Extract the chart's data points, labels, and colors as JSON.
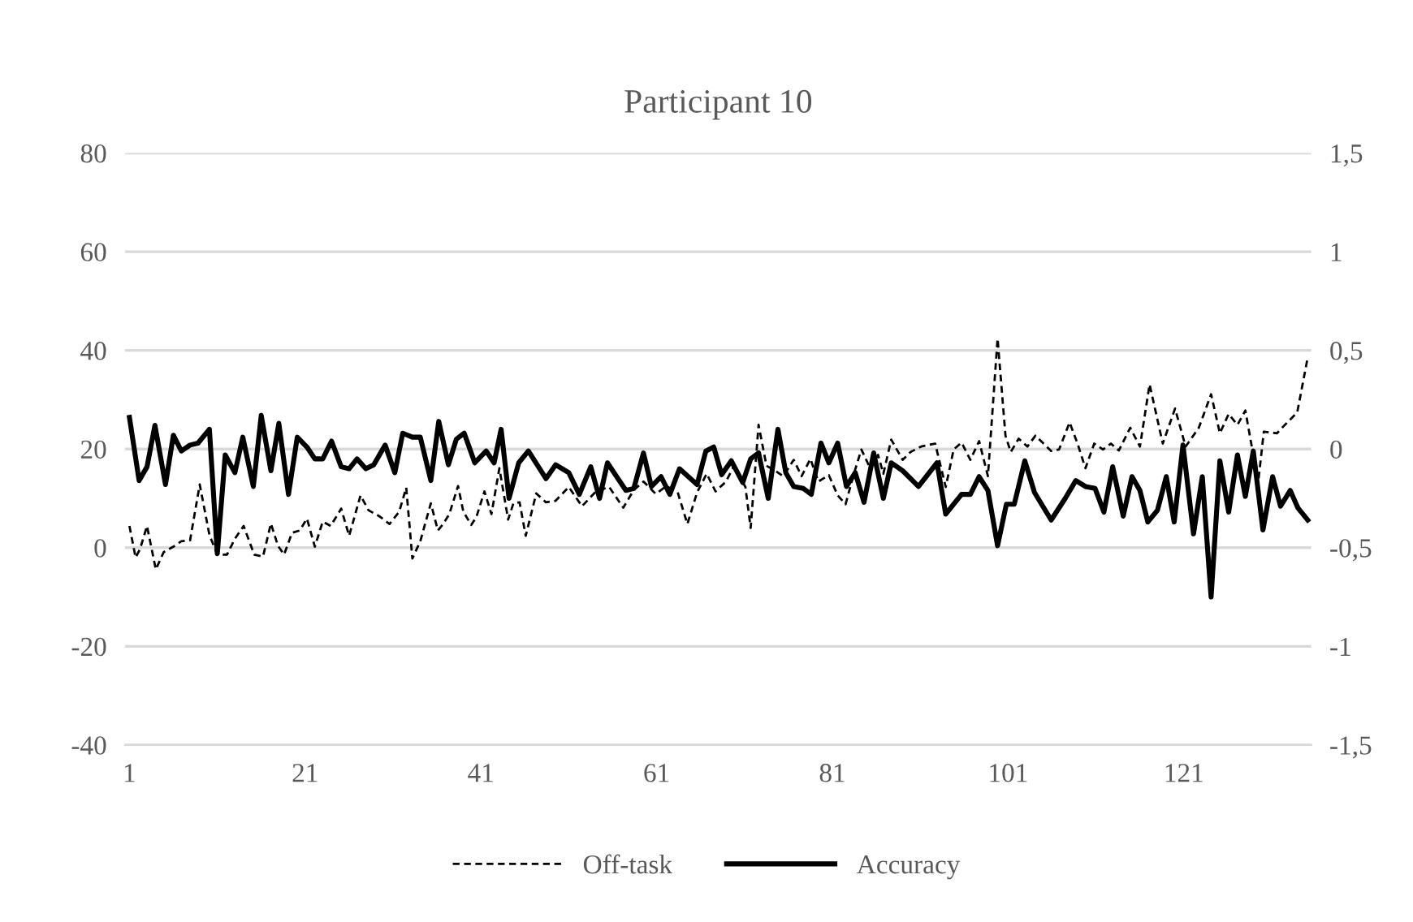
{
  "chart_data": {
    "type": "line",
    "title": "Participant 10",
    "xlim": [
      0.5,
      135.5
    ],
    "xticks": [
      1,
      21,
      41,
      61,
      81,
      101,
      121
    ],
    "ylim": [
      -40,
      80
    ],
    "yticks": [
      -40,
      -20,
      0,
      20,
      40,
      60,
      80
    ],
    "y2lim": [
      -1.5,
      1.5
    ],
    "y2ticks": [
      {
        "value": -1.5,
        "label": "-1,5"
      },
      -1,
      {
        "value": -0.5,
        "label": "-0,5"
      },
      0,
      {
        "value": 0.5,
        "label": "0,5"
      },
      1,
      {
        "value": 1.5,
        "label": "1,5"
      }
    ],
    "grid": "y",
    "legend": "bottom",
    "marker": "none",
    "series": [
      {
        "name": "Off-task",
        "color": "#000000",
        "line_style": "dashed",
        "axis": "y",
        "x": [
          1,
          1.7,
          2.2,
          3.0,
          4.0,
          4.9,
          6.0,
          6.9,
          7.9,
          9.0,
          10.1,
          11.0,
          12.1,
          13.0,
          14.0,
          15.2,
          16.2,
          17.1,
          17.9,
          18.6,
          19.5,
          20.4,
          21.2,
          22.1,
          23.0,
          23.9,
          25.1,
          26.0,
          27.3,
          28.2,
          29.5,
          30.6,
          31.7,
          32.5,
          33.2,
          34.1,
          35.3,
          36.1,
          36.7,
          37.4,
          38.4,
          39.0,
          39.9,
          40.5,
          41.4,
          42.2,
          43.1,
          44.1,
          44.7,
          45.4,
          46.1,
          47.3,
          48.4,
          49.5,
          51.0,
          52.5,
          54.1,
          55.6,
          57.2,
          58.4,
          59.5,
          60.9,
          62.1,
          63.4,
          64.5,
          65.6,
          66.7,
          67.7,
          68.9,
          69.8,
          71.1,
          71.7,
          72.6,
          73.5,
          74.5,
          75.4,
          76.6,
          77.5,
          78.5,
          79.4,
          80.6,
          81.6,
          82.5,
          83.4,
          84.3,
          85.3,
          86.2,
          86.8,
          87.7,
          89.0,
          89.9,
          91.1,
          92.7,
          93.9,
          94.8,
          95.7,
          96.7,
          97.7,
          98.7,
          99.8,
          100.7,
          101.3,
          102.2,
          103.2,
          104.1,
          105.9,
          106.8,
          108.0,
          108.9,
          109.8,
          110.8,
          111.8,
          112.7,
          113.6,
          114.9,
          116.0,
          117.1,
          118.6,
          120.0,
          121.2,
          122.7,
          124.1,
          125.1,
          126.1,
          127.1,
          128.0,
          128.9,
          129.4,
          130.1,
          131.6,
          132.5,
          133.9,
          135.1
        ],
        "values": [
          4.4,
          -2.0,
          -0.3,
          4.4,
          -4.4,
          -0.9,
          0.2,
          1.3,
          1.5,
          12.8,
          2.6,
          -1.4,
          -1.4,
          1.8,
          4.4,
          -1.4,
          -1.8,
          4.9,
          0.4,
          -1.4,
          3.0,
          3.5,
          5.9,
          0.2,
          5.3,
          4.4,
          7.9,
          2.4,
          10.6,
          7.6,
          6.3,
          4.8,
          7.3,
          12.2,
          -2.2,
          1.3,
          9.0,
          3.5,
          4.8,
          6.8,
          12.5,
          7.3,
          4.6,
          6.3,
          11.4,
          6.8,
          16.1,
          5.7,
          9.0,
          9.2,
          2.4,
          11.0,
          9.2,
          9.5,
          12.3,
          8.4,
          11.4,
          12.3,
          8.1,
          11.7,
          13.4,
          10.9,
          12.5,
          11.2,
          4.8,
          11.2,
          15.0,
          11.4,
          13.4,
          16.6,
          12.3,
          4.0,
          24.9,
          16.6,
          15.6,
          14.5,
          17.8,
          14.5,
          18.0,
          13.4,
          14.7,
          10.6,
          8.8,
          14.7,
          19.9,
          16.1,
          18.8,
          15.0,
          21.9,
          17.8,
          19.4,
          20.5,
          21.1,
          12.3,
          19.9,
          21.3,
          17.8,
          21.6,
          14.5,
          42.4,
          22.7,
          19.4,
          22.1,
          20.5,
          22.7,
          19.6,
          19.9,
          25.4,
          21.1,
          16.1,
          21.1,
          19.9,
          21.1,
          19.7,
          24.3,
          20.5,
          33.1,
          21.1,
          28.2,
          20.5,
          24.3,
          31.1,
          23.2,
          27.1,
          24.9,
          27.8,
          18.8,
          12.3,
          23.5,
          23.2,
          24.9,
          27.4,
          38.6
        ]
      },
      {
        "name": "Accuracy",
        "color": "#000000",
        "line_style": "solid",
        "axis": "y2",
        "x": [
          1,
          2.1,
          3.0,
          3.9,
          5.1,
          6.0,
          6.9,
          7.9,
          8.8,
          10.1,
          11.0,
          11.9,
          13.0,
          13.9,
          15.1,
          16.0,
          17.1,
          18.0,
          19.1,
          20.1,
          21.2,
          22.1,
          23.0,
          24.0,
          25.1,
          26.0,
          26.9,
          27.9,
          28.8,
          30.1,
          31.2,
          32.1,
          33.2,
          34.1,
          35.3,
          36.2,
          37.3,
          38.2,
          39.1,
          40.3,
          41.6,
          42.5,
          43.3,
          44.2,
          45.3,
          46.4,
          48.4,
          49.5,
          51.0,
          52.2,
          53.5,
          54.5,
          55.4,
          57.5,
          58.4,
          59.5,
          60.4,
          61.5,
          62.5,
          63.6,
          65.6,
          66.6,
          67.5,
          68.4,
          69.5,
          70.8,
          71.7,
          72.6,
          73.7,
          74.8,
          75.7,
          76.6,
          77.7,
          78.6,
          79.7,
          80.6,
          81.6,
          82.6,
          83.6,
          84.6,
          85.7,
          86.8,
          87.7,
          89.0,
          90.8,
          92.9,
          93.9,
          95.7,
          96.7,
          97.7,
          98.7,
          99.8,
          100.8,
          101.7,
          102.9,
          104.0,
          105.9,
          107.5,
          108.7,
          109.8,
          110.9,
          111.9,
          112.9,
          114.1,
          115.1,
          116.0,
          116.9,
          118.0,
          119.0,
          119.9,
          120.9,
          122.1,
          123.1,
          124.1,
          125.1,
          126.1,
          127.1,
          128.0,
          128.9,
          130.0,
          131.1,
          132.0,
          133.1,
          134.0,
          135.1
        ],
        "values": [
          0.16,
          -0.16,
          -0.09,
          0.12,
          -0.18,
          0.07,
          -0.01,
          0.02,
          0.03,
          0.1,
          -0.53,
          -0.03,
          -0.12,
          0.06,
          -0.19,
          0.17,
          -0.11,
          0.13,
          -0.23,
          0.06,
          0.01,
          -0.05,
          -0.05,
          0.04,
          -0.09,
          -0.1,
          -0.05,
          -0.1,
          -0.08,
          0.02,
          -0.12,
          0.08,
          0.06,
          0.06,
          -0.16,
          0.14,
          -0.08,
          0.05,
          0.08,
          -0.07,
          -0.01,
          -0.07,
          0.1,
          -0.25,
          -0.07,
          -0.01,
          -0.15,
          -0.08,
          -0.12,
          -0.23,
          -0.09,
          -0.25,
          -0.07,
          -0.21,
          -0.2,
          -0.02,
          -0.19,
          -0.14,
          -0.23,
          -0.1,
          -0.18,
          -0.01,
          0.01,
          -0.13,
          -0.06,
          -0.17,
          -0.05,
          -0.02,
          -0.25,
          0.1,
          -0.12,
          -0.19,
          -0.2,
          -0.23,
          0.03,
          -0.07,
          0.03,
          -0.19,
          -0.12,
          -0.27,
          -0.02,
          -0.25,
          -0.07,
          -0.11,
          -0.19,
          -0.07,
          -0.33,
          -0.23,
          -0.23,
          -0.14,
          -0.21,
          -0.49,
          -0.28,
          -0.28,
          -0.06,
          -0.22,
          -0.36,
          -0.25,
          -0.16,
          -0.19,
          -0.2,
          -0.32,
          -0.09,
          -0.34,
          -0.14,
          -0.21,
          -0.37,
          -0.31,
          -0.14,
          -0.37,
          0.02,
          -0.43,
          -0.14,
          -0.75,
          -0.06,
          -0.32,
          -0.03,
          -0.24,
          -0.01,
          -0.41,
          -0.14,
          -0.29,
          -0.21,
          -0.3,
          -0.36
        ]
      }
    ]
  }
}
